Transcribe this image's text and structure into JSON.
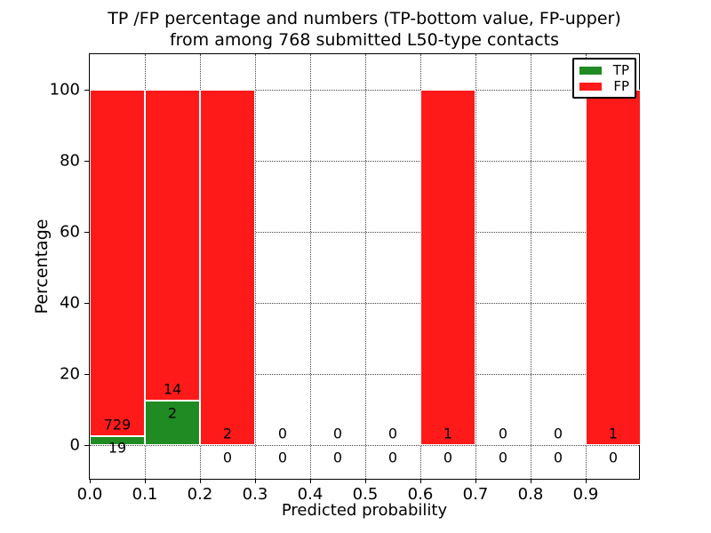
{
  "figure": {
    "title_line1": "TP /FP percentage and numbers (TP-bottom value, FP-upper)",
    "title_line2": "from among 768 submitted L50-type contacts"
  },
  "chart_data": {
    "type": "bar",
    "stacked": true,
    "title": "TP /FP percentage and numbers (TP-bottom value, FP-upper) from among 768 submitted L50-type contacts",
    "xlabel": "Predicted probability",
    "ylabel": "Percentage",
    "total_submitted": 768,
    "xlim": [
      0.0,
      1.0
    ],
    "ylim": [
      -10,
      110
    ],
    "x_tick_labels": [
      "0.0",
      "0.1",
      "0.2",
      "0.3",
      "0.4",
      "0.5",
      "0.6",
      "0.7",
      "0.8",
      "0.9"
    ],
    "y_ticks": [
      0,
      20,
      40,
      60,
      80,
      100
    ],
    "grid": "dotted",
    "legend": {
      "position": "upper right",
      "entries": [
        {
          "label": "TP",
          "color": "#1f8b22"
        },
        {
          "label": "FP",
          "color": "#ff1a1a"
        }
      ]
    },
    "bins": [
      {
        "x_range": [
          0.0,
          0.1
        ],
        "tp_count": 19,
        "fp_count": 729,
        "tp_pct": 2.54,
        "fp_pct": 97.46
      },
      {
        "x_range": [
          0.1,
          0.2
        ],
        "tp_count": 2,
        "fp_count": 14,
        "tp_pct": 12.5,
        "fp_pct": 87.5
      },
      {
        "x_range": [
          0.2,
          0.3
        ],
        "tp_count": 0,
        "fp_count": 2,
        "tp_pct": 0,
        "fp_pct": 100
      },
      {
        "x_range": [
          0.3,
          0.4
        ],
        "tp_count": 0,
        "fp_count": 0,
        "tp_pct": 0,
        "fp_pct": 0
      },
      {
        "x_range": [
          0.4,
          0.5
        ],
        "tp_count": 0,
        "fp_count": 0,
        "tp_pct": 0,
        "fp_pct": 0
      },
      {
        "x_range": [
          0.5,
          0.6
        ],
        "tp_count": 0,
        "fp_count": 0,
        "tp_pct": 0,
        "fp_pct": 0
      },
      {
        "x_range": [
          0.6,
          0.7
        ],
        "tp_count": 0,
        "fp_count": 1,
        "tp_pct": 0,
        "fp_pct": 100
      },
      {
        "x_range": [
          0.7,
          0.8
        ],
        "tp_count": 0,
        "fp_count": 0,
        "tp_pct": 0,
        "fp_pct": 0
      },
      {
        "x_range": [
          0.8,
          0.9
        ],
        "tp_count": 0,
        "fp_count": 0,
        "tp_pct": 0,
        "fp_pct": 0
      },
      {
        "x_range": [
          0.9,
          1.0
        ],
        "tp_count": 0,
        "fp_count": 1,
        "tp_pct": 0,
        "fp_pct": 100
      }
    ]
  },
  "colors": {
    "tp_green": "#1f8b22",
    "fp_red": "#ff1a1a",
    "grid": "#444444",
    "frame": "#000000",
    "background": "#ffffff",
    "text": "#000000"
  }
}
